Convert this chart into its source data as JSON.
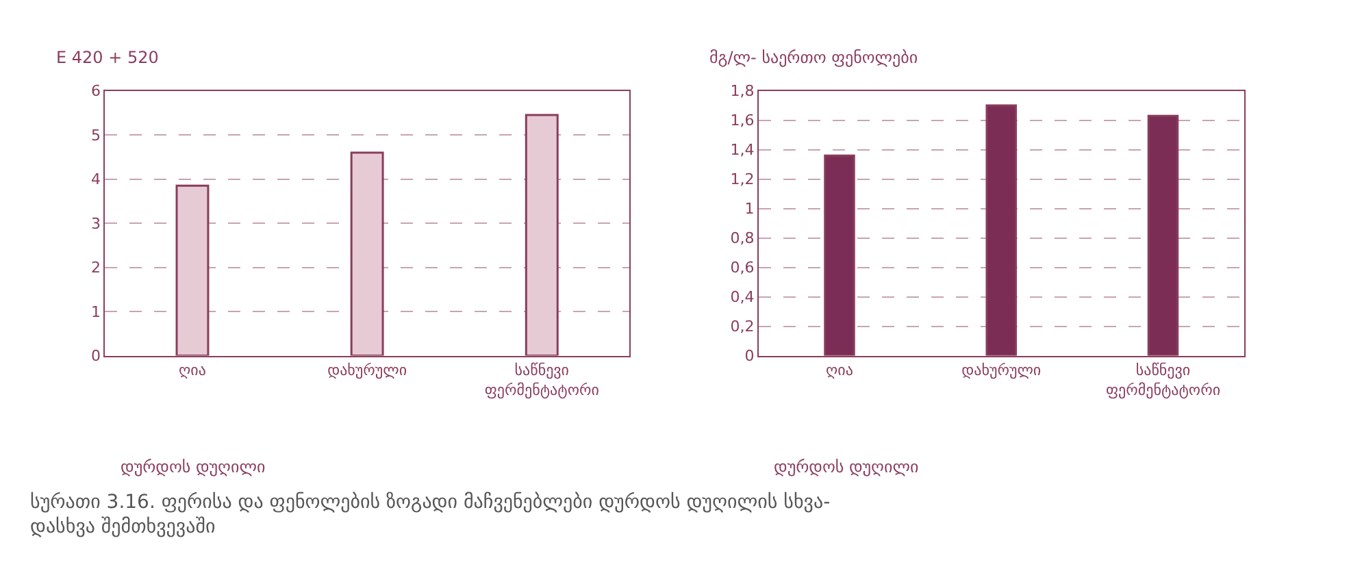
{
  "chart_data": [
    {
      "type": "bar",
      "ylabel": "E 420 + 520",
      "xlabel": "დურდოს დუღილი",
      "categories": [
        "ღია",
        "დახურული",
        "საწნევი ფერმენტატორი"
      ],
      "series": [
        {
          "color": "#e6cbd5",
          "values": [
            3.85,
            4.6,
            5.45
          ]
        }
      ],
      "ylim": [
        0,
        6
      ],
      "yticks": [
        0,
        1,
        2,
        3,
        4,
        5,
        6
      ],
      "grid": "y"
    },
    {
      "type": "bar",
      "ylabel": "მგ/ლ- საერთო ფენოლები",
      "xlabel": "დურდოს დუღილი",
      "categories": [
        "ღია",
        "დახურული",
        "საწნევი ფერმენტატორი"
      ],
      "series": [
        {
          "color": "#7b2d55",
          "values": [
            1.36,
            1.7,
            1.63
          ]
        }
      ],
      "ylim": [
        0,
        1.8
      ],
      "yticks": [
        0,
        {
          "value": 0.2,
          "label": "0,2"
        },
        {
          "value": 0.4,
          "label": "0,4"
        },
        {
          "value": 0.6,
          "label": "0,6"
        },
        {
          "value": 0.8,
          "label": "0,8"
        },
        1,
        {
          "value": 1.2,
          "label": "1,2"
        },
        {
          "value": 1.4,
          "label": "1,4"
        },
        {
          "value": 1.6,
          "label": "1,6"
        },
        {
          "value": 1.8,
          "label": "1,8"
        }
      ],
      "grid": "y",
      "annotations": [
        "სურათი 3.16. ფერისა და ფენოლების ზოგადი მაჩვენებლები დურდოს დუღილის სხვა-\nდასხვა შემთხვევაში"
      ]
    }
  ]
}
